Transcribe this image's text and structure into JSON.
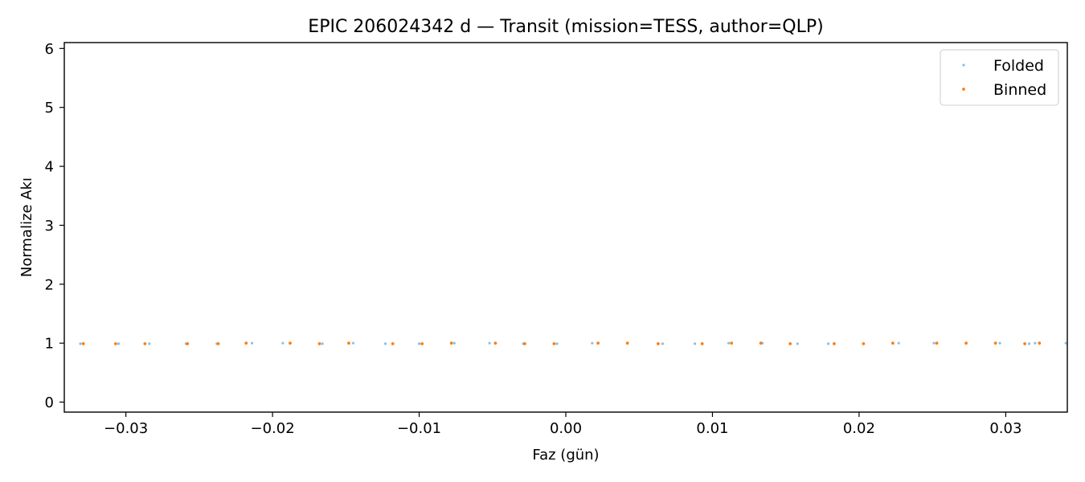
{
  "chart_data": {
    "type": "scatter",
    "title": "EPIC 206024342 d — Transit (mission=TESS, author=QLP)",
    "xlabel": "Faz (gün)",
    "ylabel": "Normalize Akı",
    "xlim": [
      -0.0342,
      0.0342
    ],
    "ylim": [
      -0.17,
      6.1
    ],
    "xticks": [
      -0.03,
      -0.02,
      -0.01,
      0.0,
      0.01,
      0.02,
      0.03
    ],
    "xtick_labels": [
      "−0.03",
      "−0.02",
      "−0.01",
      "0.00",
      "0.01",
      "0.02",
      "0.03"
    ],
    "yticks": [
      0,
      1,
      2,
      3,
      4,
      5,
      6
    ],
    "ytick_labels": [
      "0",
      "1",
      "2",
      "3",
      "4",
      "5",
      "6"
    ],
    "grid": false,
    "legend_position": "top-right",
    "series": [
      {
        "name": "Folded",
        "color": "#87c0e8",
        "x": [
          -0.0331,
          -0.0305,
          -0.0284,
          -0.0259,
          -0.0238,
          -0.0214,
          -0.0193,
          -0.0166,
          -0.0145,
          -0.0123,
          -0.01,
          -0.0076,
          -0.0052,
          -0.0029,
          -0.0006,
          0.0018,
          0.0042,
          0.0066,
          0.0088,
          0.0111,
          0.0134,
          0.0158,
          0.0179,
          0.0203,
          0.0227,
          0.0251,
          0.0273,
          0.0296,
          0.0316,
          0.032,
          0.0341
        ],
        "y": [
          0.99,
          0.99,
          0.99,
          0.99,
          0.99,
          1.0,
          1.0,
          0.99,
          1.0,
          0.99,
          0.99,
          1.0,
          1.0,
          0.99,
          0.99,
          1.0,
          1.0,
          0.99,
          0.99,
          1.0,
          1.0,
          0.99,
          0.99,
          0.99,
          1.0,
          1.0,
          1.0,
          1.0,
          0.99,
          1.0,
          1.0
        ]
      },
      {
        "name": "Binned",
        "color": "#ff7f0e",
        "x": [
          -0.0329,
          -0.0307,
          -0.0287,
          -0.0258,
          -0.0237,
          -0.0218,
          -0.0188,
          -0.0168,
          -0.0148,
          -0.0118,
          -0.0098,
          -0.0078,
          -0.0048,
          -0.0028,
          -0.0008,
          0.0022,
          0.0042,
          0.0063,
          0.0093,
          0.0113,
          0.0133,
          0.0153,
          0.0183,
          0.0203,
          0.0223,
          0.0253,
          0.0273,
          0.0293,
          0.0313,
          0.0323
        ],
        "y": [
          0.99,
          0.99,
          0.99,
          0.99,
          0.99,
          1.0,
          1.0,
          0.99,
          1.0,
          0.99,
          0.99,
          1.0,
          1.0,
          0.99,
          0.99,
          1.0,
          1.0,
          0.99,
          0.99,
          1.0,
          1.0,
          0.99,
          0.99,
          0.99,
          1.0,
          1.0,
          1.0,
          1.0,
          0.99,
          1.0
        ]
      }
    ]
  }
}
